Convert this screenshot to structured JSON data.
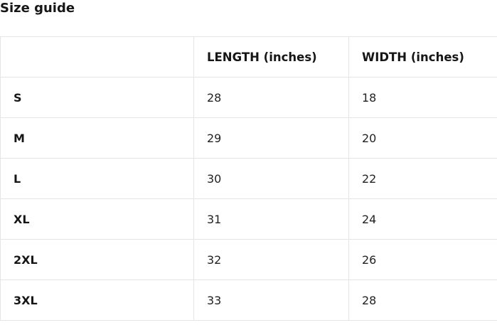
{
  "page": {
    "title": "Size guide"
  },
  "size_table": {
    "columns": {
      "size": "",
      "length": "LENGTH (inches)",
      "width": "WIDTH (inches)"
    },
    "rows": [
      {
        "size": "S",
        "length": "28",
        "width": "18"
      },
      {
        "size": "M",
        "length": "29",
        "width": "20"
      },
      {
        "size": "L",
        "length": "30",
        "width": "22"
      },
      {
        "size": "XL",
        "length": "31",
        "width": "24"
      },
      {
        "size": "2XL",
        "length": "32",
        "width": "26"
      },
      {
        "size": "3XL",
        "length": "33",
        "width": "28"
      }
    ]
  },
  "colors": {
    "border": "#e5e5e5",
    "text": "#161616",
    "background": "#ffffff"
  },
  "chart_data": {
    "type": "table",
    "title": "Size guide",
    "categories": [
      "S",
      "M",
      "L",
      "XL",
      "2XL",
      "3XL"
    ],
    "series": [
      {
        "name": "LENGTH (inches)",
        "values": [
          28,
          29,
          30,
          31,
          32,
          33
        ]
      },
      {
        "name": "WIDTH (inches)",
        "values": [
          18,
          20,
          22,
          24,
          26,
          28
        ]
      }
    ]
  }
}
